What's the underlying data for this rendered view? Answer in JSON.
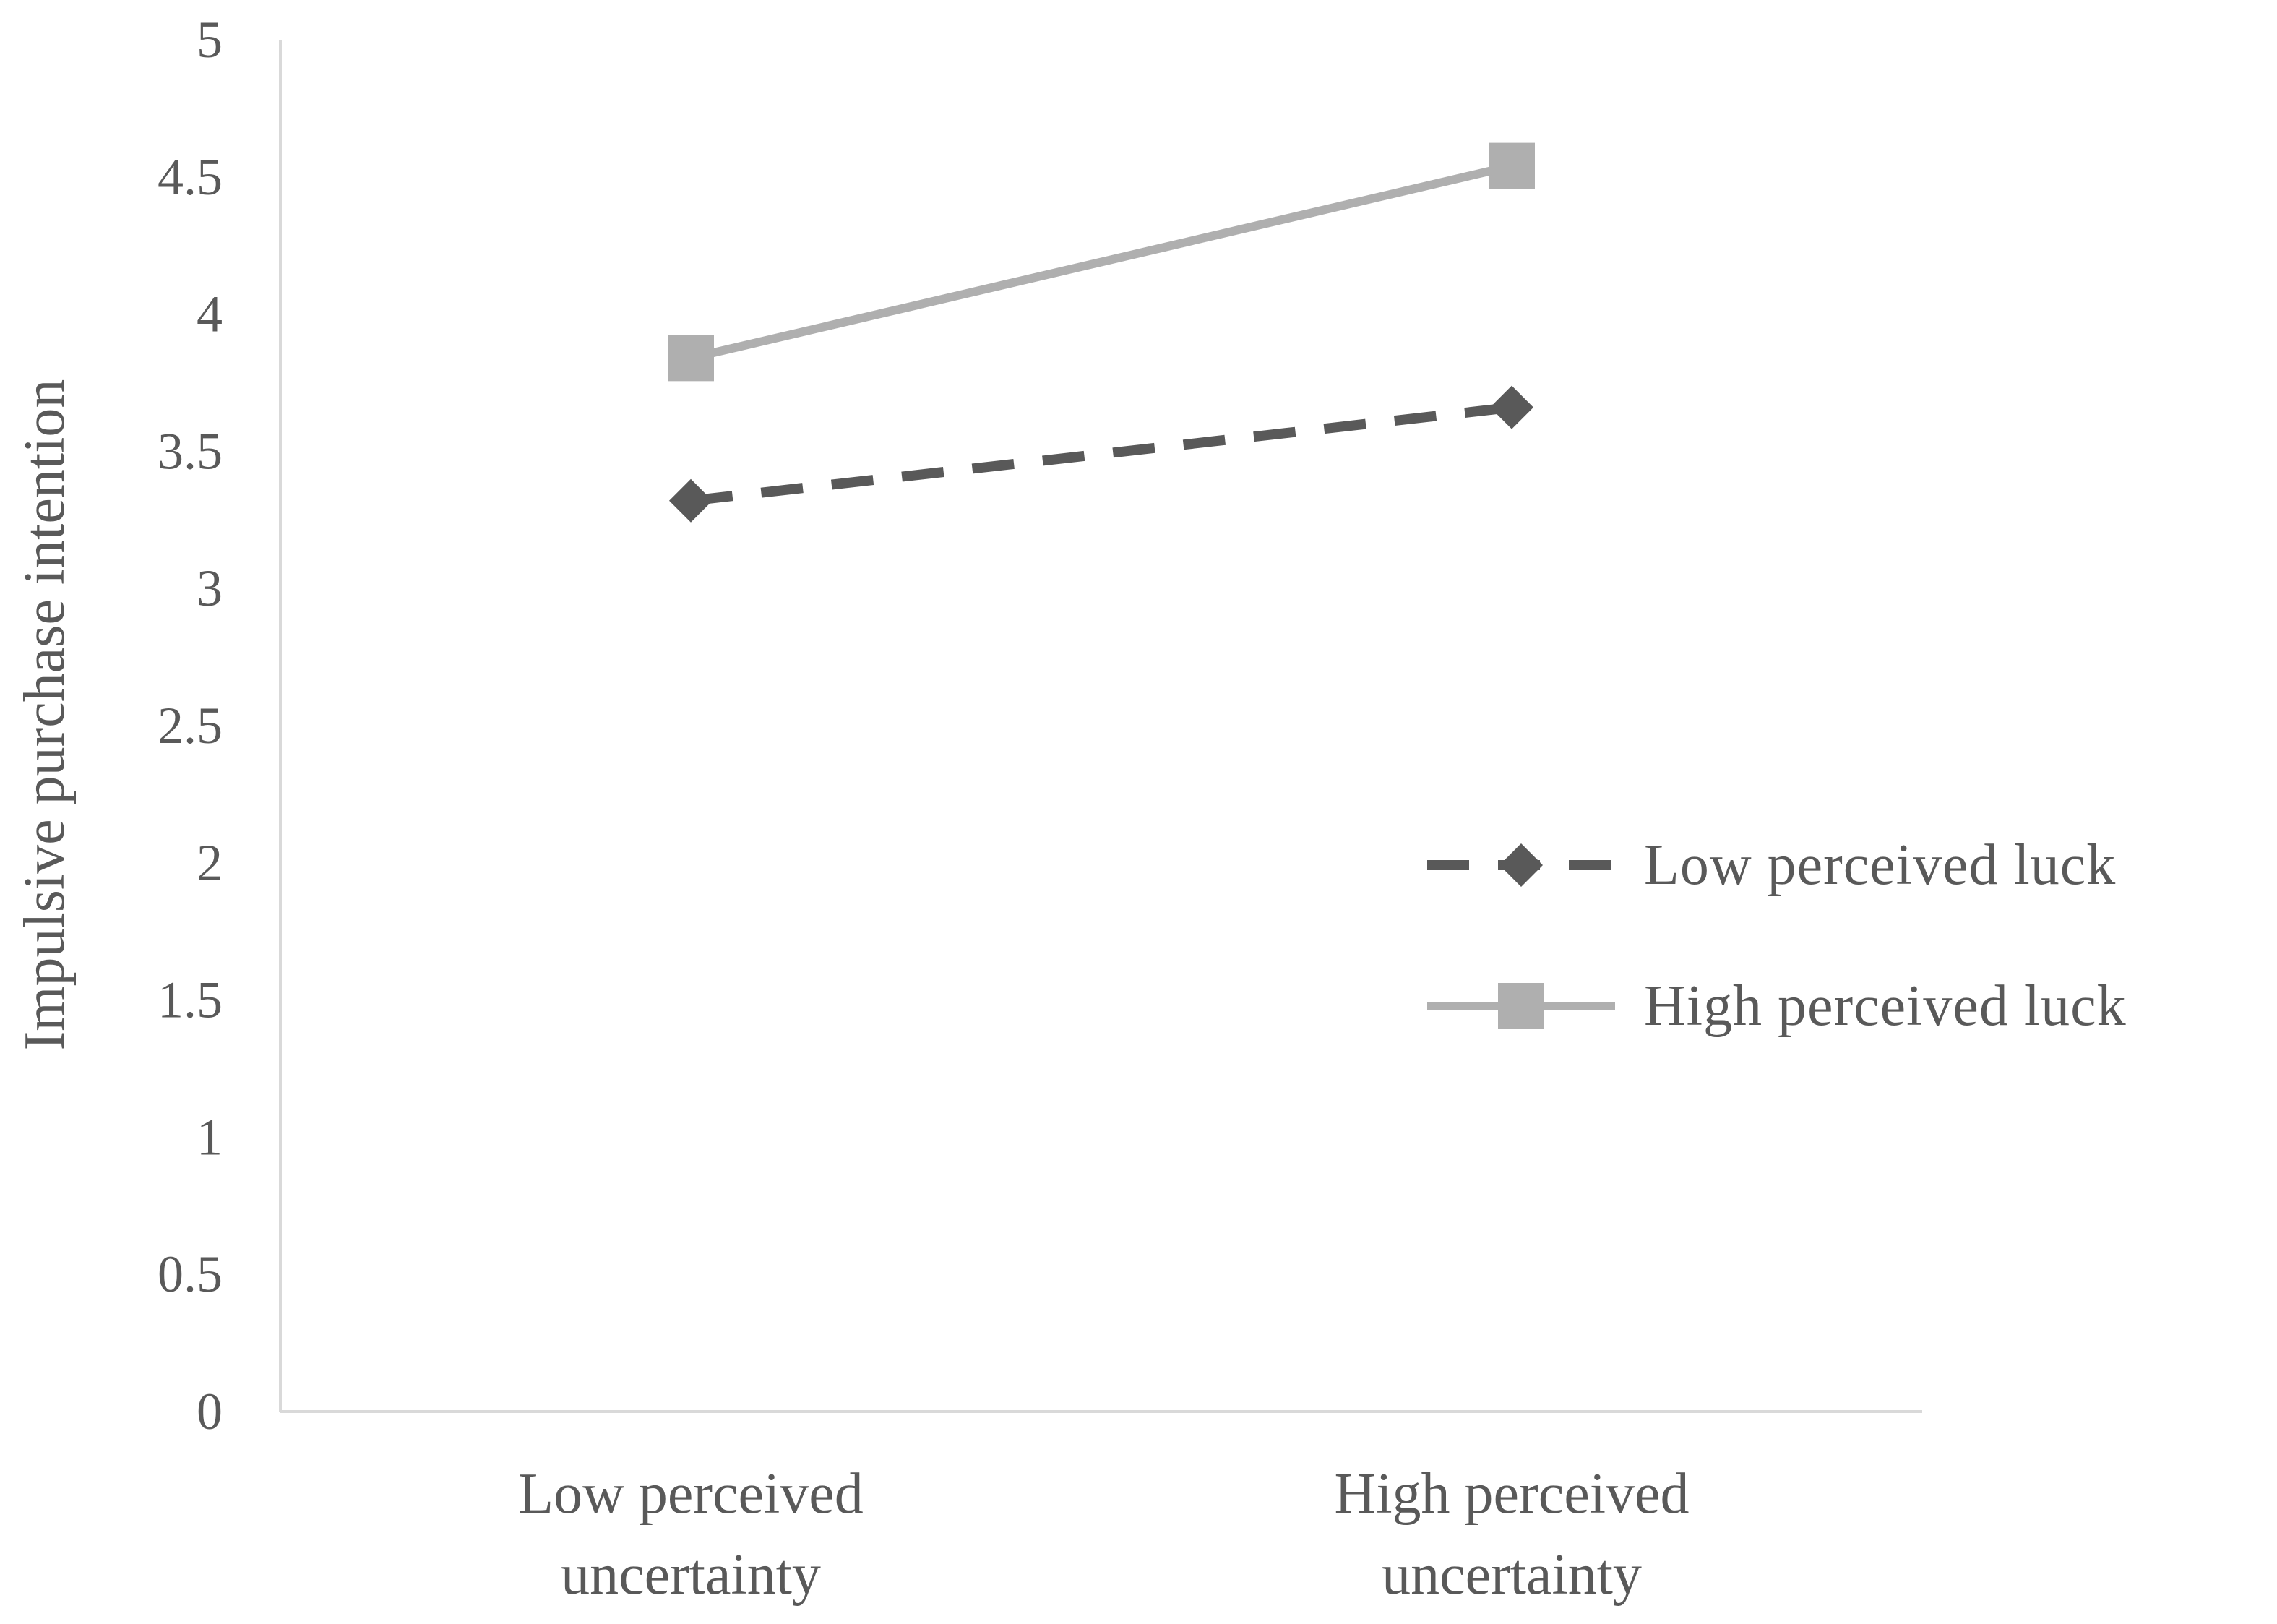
{
  "chart_data": {
    "type": "line",
    "categories": [
      [
        "Low perceived",
        "uncertainty"
      ],
      [
        "High perceived",
        "uncertainty"
      ]
    ],
    "series": [
      {
        "name": "Low perceived luck",
        "values": [
          3.32,
          3.66
        ],
        "color": "#595959",
        "line_style": "dashed",
        "marker": "diamond"
      },
      {
        "name": "High perceived luck",
        "values": [
          3.84,
          4.54
        ],
        "color": "#afafaf",
        "line_style": "solid",
        "marker": "square"
      }
    ],
    "ylabel": "Impulsive purchase intention",
    "xlabel": "",
    "ylim": [
      0,
      5
    ],
    "yticks": [
      "0",
      "0.5",
      "1",
      "1.5",
      "2",
      "2.5",
      "3",
      "3.5",
      "4",
      "4.5",
      "5"
    ],
    "grid": false,
    "legend_position": "right"
  }
}
